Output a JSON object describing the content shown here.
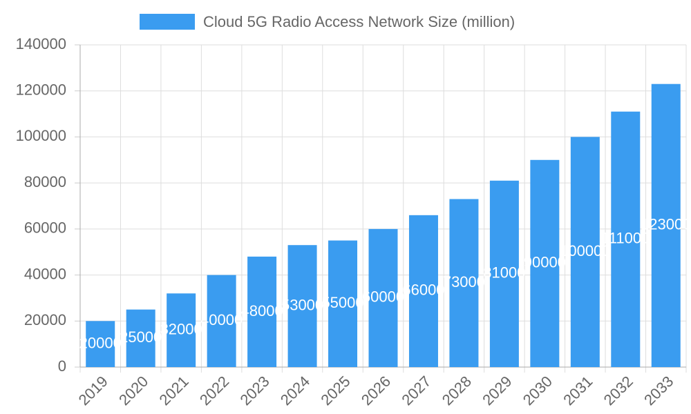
{
  "chart_data": {
    "type": "bar",
    "categories": [
      "2019",
      "2020",
      "2021",
      "2022",
      "2023",
      "2024",
      "2025",
      "2026",
      "2027",
      "2028",
      "2029",
      "2030",
      "2031",
      "2032",
      "2033"
    ],
    "series": [
      {
        "name": "Cloud 5G Radio Access Network Size (million)",
        "color": "#3a9cf0",
        "values": [
          20000,
          25000,
          32000,
          40000,
          48000,
          53000,
          55000,
          60000,
          66000,
          73000,
          81000,
          90000,
          100000,
          111000,
          123000
        ]
      }
    ],
    "ylim": [
      0,
      140000
    ],
    "yticks": [
      0,
      20000,
      40000,
      60000,
      80000,
      100000,
      120000,
      140000
    ],
    "grid": true,
    "legend": "top",
    "data_labels": true
  }
}
